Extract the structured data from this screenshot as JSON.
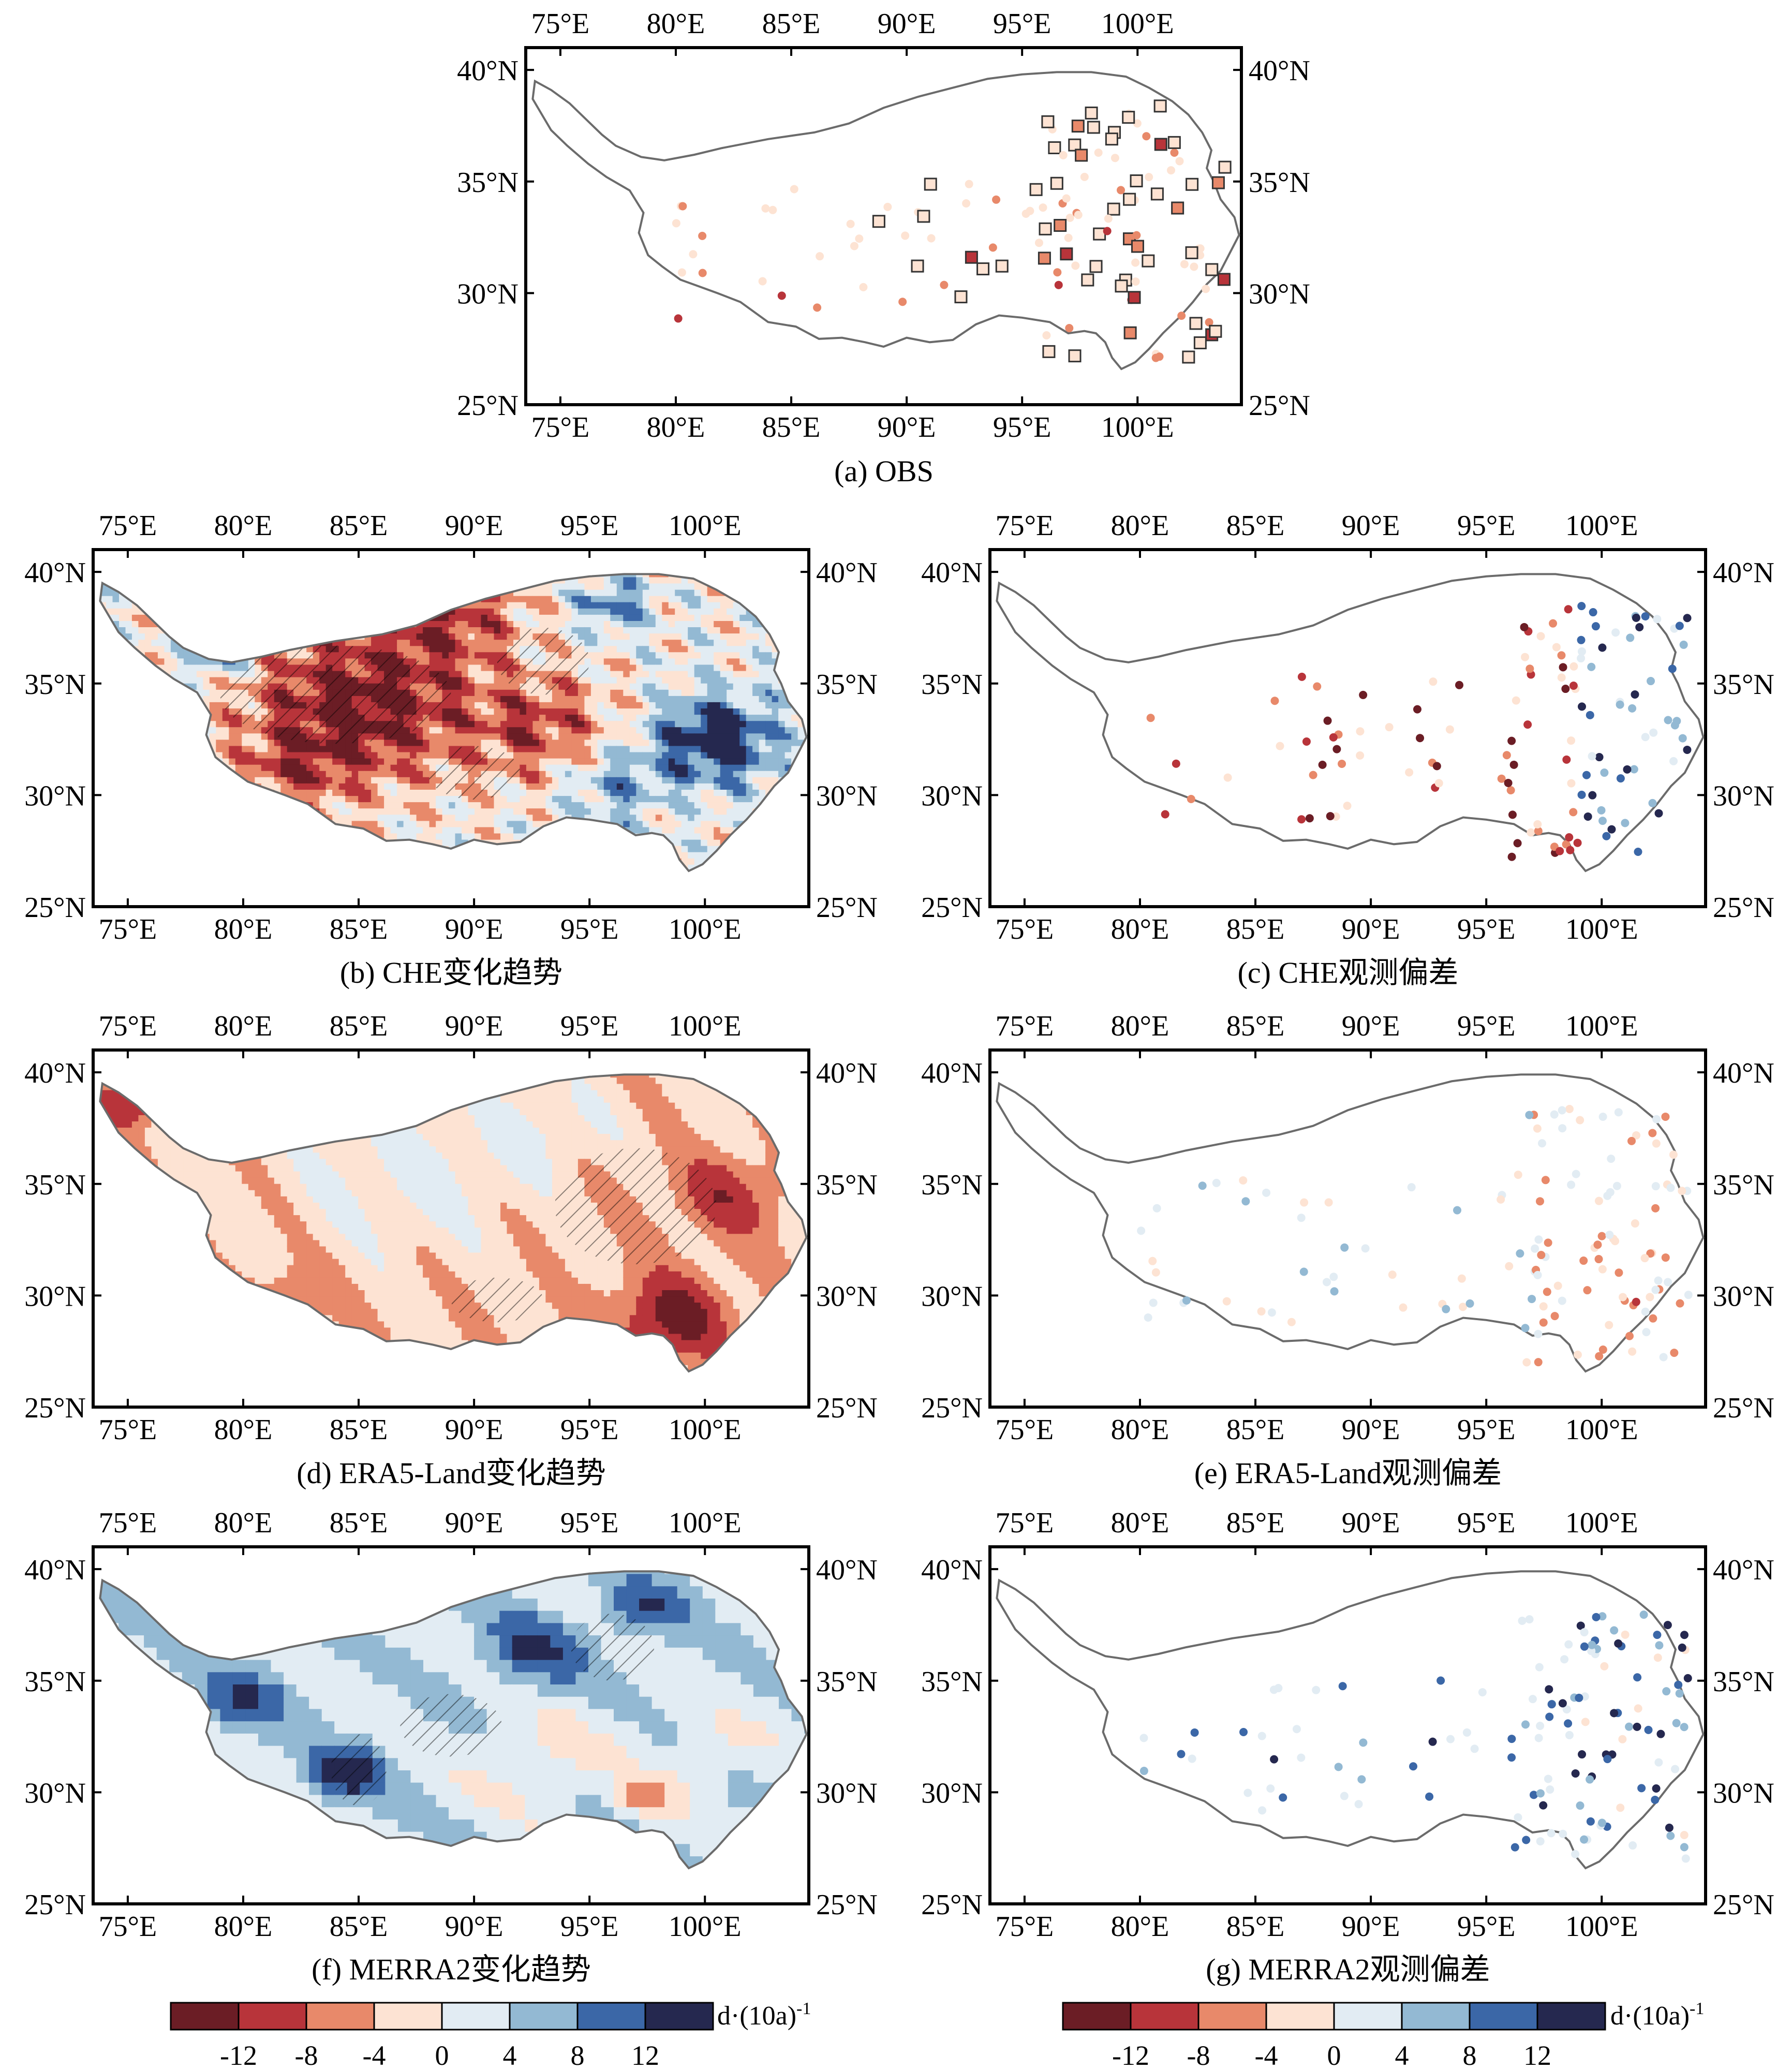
{
  "colors": {
    "classes": [
      "#6b1d25",
      "#b8343a",
      "#e8896a",
      "#fde3d3",
      "#e2ecf3",
      "#93b9d3",
      "#3b67a7",
      "#25284f"
    ],
    "outline": "#6b6b6b",
    "frame": "#000000"
  },
  "axes": {
    "lon_ticks": [
      "75°E",
      "80°E",
      "85°E",
      "90°E",
      "95°E",
      "100°E"
    ],
    "lat_ticks": [
      "40°N",
      "35°N",
      "30°N",
      "25°N"
    ]
  },
  "panels": [
    {
      "key": "a",
      "caption": "(a) OBS",
      "kind": "stations"
    },
    {
      "key": "b",
      "caption": "(b) CHE变化趋势",
      "kind": "field"
    },
    {
      "key": "c",
      "caption": "(c) CHE观测偏差",
      "kind": "stations"
    },
    {
      "key": "d",
      "caption": "(d) ERA5-Land变化趋势",
      "kind": "field"
    },
    {
      "key": "e",
      "caption": "(e) ERA5-Land观测偏差",
      "kind": "stations"
    },
    {
      "key": "f",
      "caption": "(f) MERRA2变化趋势",
      "kind": "field"
    },
    {
      "key": "g",
      "caption": "(g) MERRA2观测偏差",
      "kind": "stations"
    }
  ],
  "colorbar": {
    "ticks": [
      "-12",
      "-8",
      "-4",
      "0",
      "4",
      "8",
      "12"
    ],
    "unit_main": "d·(10a)",
    "unit_exp": "-1"
  }
}
